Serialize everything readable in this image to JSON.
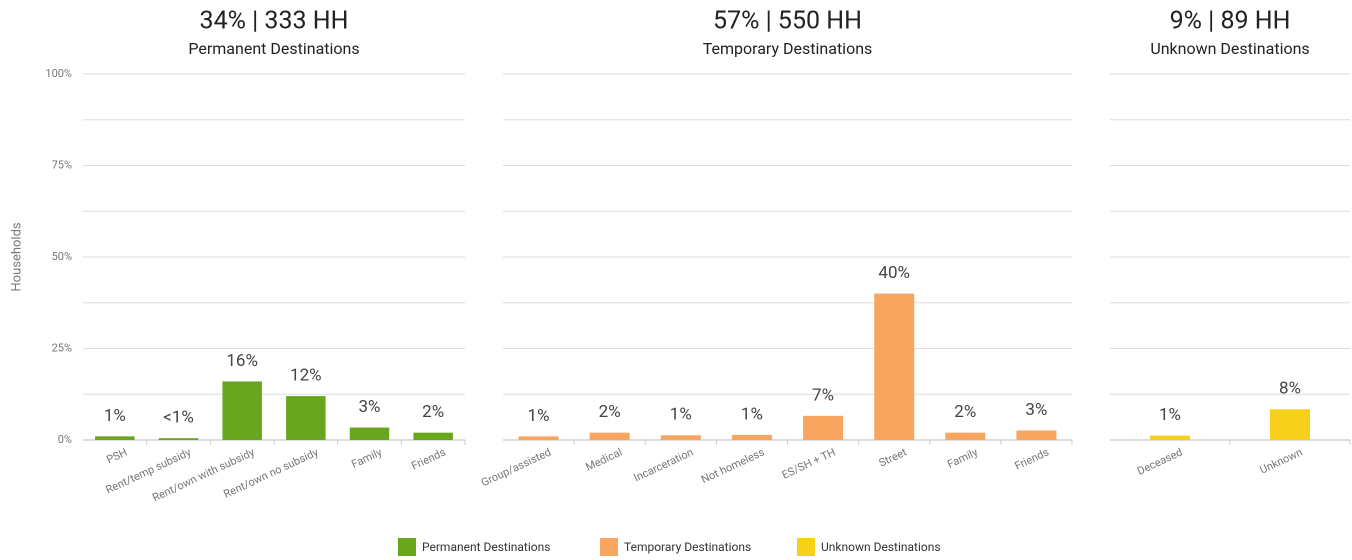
{
  "chart_data": [
    {
      "type": "bar",
      "title": "34% | 333 HH",
      "subtitle": "Permanent Destinations",
      "ylabel": "Households",
      "categories": [
        "PSH",
        "Rent/temp subsidy",
        "Rent/own with subsidy",
        "Rent/own no subsidy",
        "Family",
        "Friends"
      ],
      "series": [
        {
          "name": "Permanent Destinations",
          "color": "#6aa61d",
          "values": [
            1,
            0.5,
            16,
            12,
            3.4,
            2
          ],
          "value_labels": [
            "1%",
            "<1%",
            "16%",
            "12%",
            "3%",
            "2%"
          ]
        }
      ],
      "ylim": [
        0,
        100
      ],
      "yticks": [
        {
          "value": 0,
          "label": "0%"
        },
        {
          "value": 25,
          "label": "25%"
        },
        {
          "value": 50,
          "label": "50%"
        },
        {
          "value": 75,
          "label": "75%"
        },
        {
          "value": 100,
          "label": "100%"
        }
      ],
      "yminor": [
        12.5,
        37.5,
        62.5,
        87.5
      ],
      "grid": true
    },
    {
      "type": "bar",
      "title": "57% | 550 HH",
      "subtitle": "Temporary Destinations",
      "categories": [
        "Group/assisted",
        "Medical",
        "Incarceration",
        "Not homeless",
        "ES/SH + TH",
        "Street",
        "Family",
        "Friends"
      ],
      "series": [
        {
          "name": "Temporary Destinations",
          "color": "#f8a55f",
          "values": [
            1,
            2,
            1.3,
            1.4,
            6.6,
            40,
            2,
            2.6
          ],
          "value_labels": [
            "1%",
            "2%",
            "1%",
            "1%",
            "7%",
            "40%",
            "2%",
            "3%"
          ]
        }
      ],
      "ylim": [
        0,
        100
      ],
      "grid": true
    },
    {
      "type": "bar",
      "title": "9% | 89 HH",
      "subtitle": "Unknown Destinations",
      "categories": [
        "Deceased",
        "Unknown"
      ],
      "series": [
        {
          "name": "Unknown Destinations",
          "color": "#f6d01b",
          "values": [
            1.2,
            8.4
          ],
          "value_labels": [
            "1%",
            "8%"
          ]
        }
      ],
      "ylim": [
        0,
        100
      ],
      "grid": true
    }
  ]
}
